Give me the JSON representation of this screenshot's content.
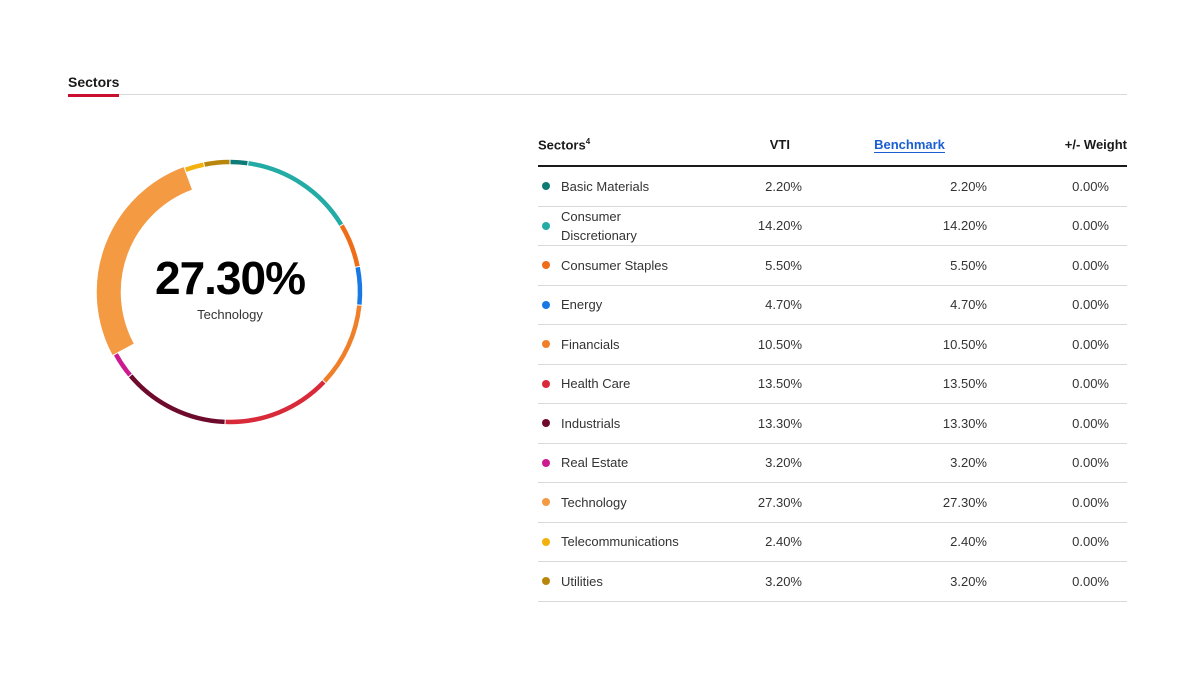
{
  "tab": {
    "label": "Sectors"
  },
  "center": {
    "value": "27.30%",
    "label": "Technology"
  },
  "table": {
    "headers": {
      "name": "Sectors",
      "name_sup": "4",
      "vti": "VTI",
      "benchmark": "Benchmark",
      "weight": "+/- Weight"
    },
    "rows": [
      {
        "name": "Basic Materials",
        "vti": "2.20%",
        "benchmark": "2.20%",
        "weight": "0.00%",
        "color": "#0f7b76"
      },
      {
        "name": "Consumer Discretionary",
        "vti": "14.20%",
        "benchmark": "14.20%",
        "weight": "0.00%",
        "color": "#23aba6"
      },
      {
        "name": "Consumer Staples",
        "vti": "5.50%",
        "benchmark": "5.50%",
        "weight": "0.00%",
        "color": "#ef6c18"
      },
      {
        "name": "Energy",
        "vti": "4.70%",
        "benchmark": "4.70%",
        "weight": "0.00%",
        "color": "#1878e4"
      },
      {
        "name": "Financials",
        "vti": "10.50%",
        "benchmark": "10.50%",
        "weight": "0.00%",
        "color": "#f07f2a"
      },
      {
        "name": "Health Care",
        "vti": "13.50%",
        "benchmark": "13.50%",
        "weight": "0.00%",
        "color": "#d92a3a"
      },
      {
        "name": "Industrials",
        "vti": "13.30%",
        "benchmark": "13.30%",
        "weight": "0.00%",
        "color": "#6e0b2c"
      },
      {
        "name": "Real Estate",
        "vti": "3.20%",
        "benchmark": "3.20%",
        "weight": "0.00%",
        "color": "#cc1a8f"
      },
      {
        "name": "Technology",
        "vti": "27.30%",
        "benchmark": "27.30%",
        "weight": "0.00%",
        "color": "#f39a43"
      },
      {
        "name": "Telecommunications",
        "vti": "2.40%",
        "benchmark": "2.40%",
        "weight": "0.00%",
        "color": "#f2b10d"
      },
      {
        "name": "Utilities",
        "vti": "3.20%",
        "benchmark": "3.20%",
        "weight": "0.00%",
        "color": "#b8860b"
      }
    ]
  },
  "chart_data": {
    "type": "pie",
    "variant": "donut",
    "categories": [
      "Basic Materials",
      "Consumer Discretionary",
      "Consumer Staples",
      "Energy",
      "Financials",
      "Health Care",
      "Industrials",
      "Real Estate",
      "Technology",
      "Telecommunications",
      "Utilities"
    ],
    "values": [
      2.2,
      14.2,
      5.5,
      4.7,
      10.5,
      13.5,
      13.3,
      3.2,
      27.3,
      2.4,
      3.2
    ],
    "colors": [
      "#0f7b76",
      "#23aba6",
      "#ef6c18",
      "#1878e4",
      "#f07f2a",
      "#d92a3a",
      "#6e0b2c",
      "#cc1a8f",
      "#f39a43",
      "#f2b10d",
      "#b8860b"
    ],
    "highlighted": "Technology",
    "legend": "none"
  }
}
